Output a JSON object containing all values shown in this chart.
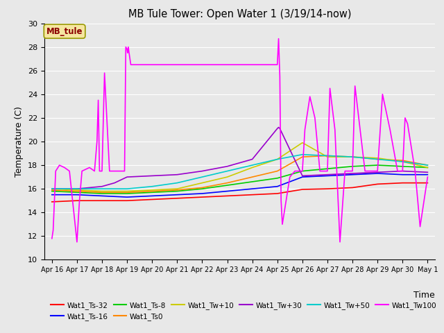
{
  "title": "MB Tule Tower: Open Water 1 (3/19/14-now)",
  "xlabel": "Time",
  "ylabel": "Temperature (C)",
  "ylim": [
    10,
    30
  ],
  "yticks": [
    10,
    12,
    14,
    16,
    18,
    20,
    22,
    24,
    26,
    28,
    30
  ],
  "xtick_labels": [
    "Apr 16",
    "Apr 17",
    "Apr 18",
    "Apr 19",
    "Apr 20",
    "Apr 21",
    "Apr 22",
    "Apr 23",
    "Apr 24",
    "Apr 25",
    "Apr 26",
    "Apr 27",
    "Apr 28",
    "Apr 29",
    "Apr 30",
    "May 1"
  ],
  "background_color": "#e8e8e8",
  "legend_label": "MB_tule",
  "series_order": [
    "Wat1_Ts-32",
    "Wat1_Ts-16",
    "Wat1_Ts-8",
    "Wat1_Ts0",
    "Wat1_Tw+10",
    "Wat1_Tw+30",
    "Wat1_Tw+50",
    "Wat1_Tw100"
  ],
  "series": {
    "Wat1_Ts-32": {
      "color": "#ff0000",
      "x": [
        0,
        1,
        2,
        3,
        4,
        5,
        6,
        7,
        8,
        9,
        10,
        11,
        12,
        13,
        14,
        15
      ],
      "y": [
        14.9,
        15.0,
        15.0,
        15.0,
        15.1,
        15.2,
        15.3,
        15.4,
        15.5,
        15.6,
        15.95,
        16.0,
        16.1,
        16.4,
        16.5,
        16.5
      ]
    },
    "Wat1_Ts-16": {
      "color": "#0000ff",
      "x": [
        0,
        1,
        2,
        3,
        4,
        5,
        6,
        7,
        8,
        9,
        10,
        11,
        12,
        13,
        14,
        15
      ],
      "y": [
        15.5,
        15.5,
        15.4,
        15.3,
        15.4,
        15.5,
        15.6,
        15.8,
        16.0,
        16.2,
        17.0,
        17.1,
        17.2,
        17.3,
        17.2,
        17.2
      ]
    },
    "Wat1_Ts-8": {
      "color": "#00cc00",
      "x": [
        0,
        1,
        2,
        3,
        4,
        5,
        6,
        7,
        8,
        9,
        10,
        11,
        12,
        13,
        14,
        15
      ],
      "y": [
        15.8,
        15.7,
        15.6,
        15.6,
        15.7,
        15.8,
        16.0,
        16.3,
        16.6,
        16.9,
        17.5,
        17.7,
        17.9,
        18.0,
        17.9,
        17.8
      ]
    },
    "Wat1_Ts0": {
      "color": "#ff8800",
      "x": [
        0,
        1,
        2,
        3,
        4,
        5,
        6,
        7,
        8,
        9,
        10,
        11,
        12,
        13,
        14,
        15
      ],
      "y": [
        15.9,
        15.8,
        15.7,
        15.7,
        15.8,
        15.9,
        16.1,
        16.5,
        17.0,
        17.5,
        18.7,
        18.8,
        18.7,
        18.5,
        18.4,
        18.0
      ]
    },
    "Wat1_Tw+10": {
      "color": "#cccc00",
      "x": [
        0,
        1,
        2,
        3,
        4,
        5,
        6,
        7,
        8,
        9,
        10,
        11,
        12,
        13,
        14,
        15
      ],
      "y": [
        16.0,
        15.9,
        15.8,
        15.8,
        15.9,
        16.0,
        16.5,
        17.0,
        17.8,
        18.5,
        19.9,
        18.7,
        18.7,
        18.6,
        18.3,
        17.8
      ]
    },
    "Wat1_Tw+30": {
      "color": "#9900cc",
      "x": [
        0,
        1,
        2,
        2.5,
        3,
        4,
        5,
        6,
        7,
        8,
        9,
        9.05,
        9.1,
        10,
        11,
        12,
        13,
        14,
        15
      ],
      "y": [
        16.0,
        16.0,
        16.2,
        16.5,
        17.0,
        17.1,
        17.2,
        17.5,
        17.9,
        18.5,
        21.1,
        21.2,
        21.1,
        17.1,
        17.2,
        17.3,
        17.4,
        17.5,
        17.4
      ]
    },
    "Wat1_Tw+50": {
      "color": "#00cccc",
      "x": [
        0,
        1,
        2,
        3,
        4,
        5,
        6,
        7,
        8,
        9,
        10,
        11,
        12,
        13,
        14,
        15
      ],
      "y": [
        16.0,
        16.0,
        16.0,
        16.0,
        16.2,
        16.5,
        17.0,
        17.5,
        18.0,
        18.5,
        18.9,
        18.8,
        18.7,
        18.5,
        18.3,
        18.0
      ]
    },
    "Wat1_Tw100": {
      "color": "#ff00ff",
      "x": [
        0,
        0.05,
        0.15,
        0.3,
        0.5,
        0.7,
        1.0,
        1.1,
        1.2,
        1.5,
        1.7,
        1.8,
        1.85,
        1.9,
        2.0,
        2.1,
        2.3,
        2.5,
        2.7,
        2.9,
        2.95,
        3.0,
        3.02,
        3.05,
        3.08,
        3.15,
        3.2,
        9.0,
        9.05,
        9.1,
        9.15,
        9.2,
        9.5,
        9.7,
        10.0,
        10.1,
        10.3,
        10.5,
        10.7,
        11.0,
        11.1,
        11.3,
        11.5,
        11.7,
        12.0,
        12.1,
        12.5,
        12.8,
        13.0,
        13.2,
        13.5,
        13.8,
        14.0,
        14.1,
        14.2,
        14.5,
        14.7,
        15.0
      ],
      "y": [
        11.8,
        12.5,
        17.5,
        18.0,
        17.8,
        17.5,
        11.5,
        15.0,
        17.5,
        17.8,
        17.5,
        20.0,
        23.5,
        17.5,
        17.5,
        25.8,
        17.5,
        17.5,
        17.5,
        17.5,
        28.0,
        27.8,
        27.5,
        28.0,
        27.5,
        26.5,
        26.5,
        26.5,
        28.7,
        25.5,
        15.0,
        13.0,
        17.0,
        17.5,
        17.5,
        21.0,
        23.8,
        22.0,
        17.5,
        17.5,
        24.5,
        21.0,
        11.5,
        17.5,
        17.5,
        24.7,
        17.5,
        17.5,
        17.5,
        24.0,
        21.0,
        17.5,
        17.5,
        22.0,
        21.5,
        17.5,
        12.8,
        17.0
      ]
    }
  }
}
